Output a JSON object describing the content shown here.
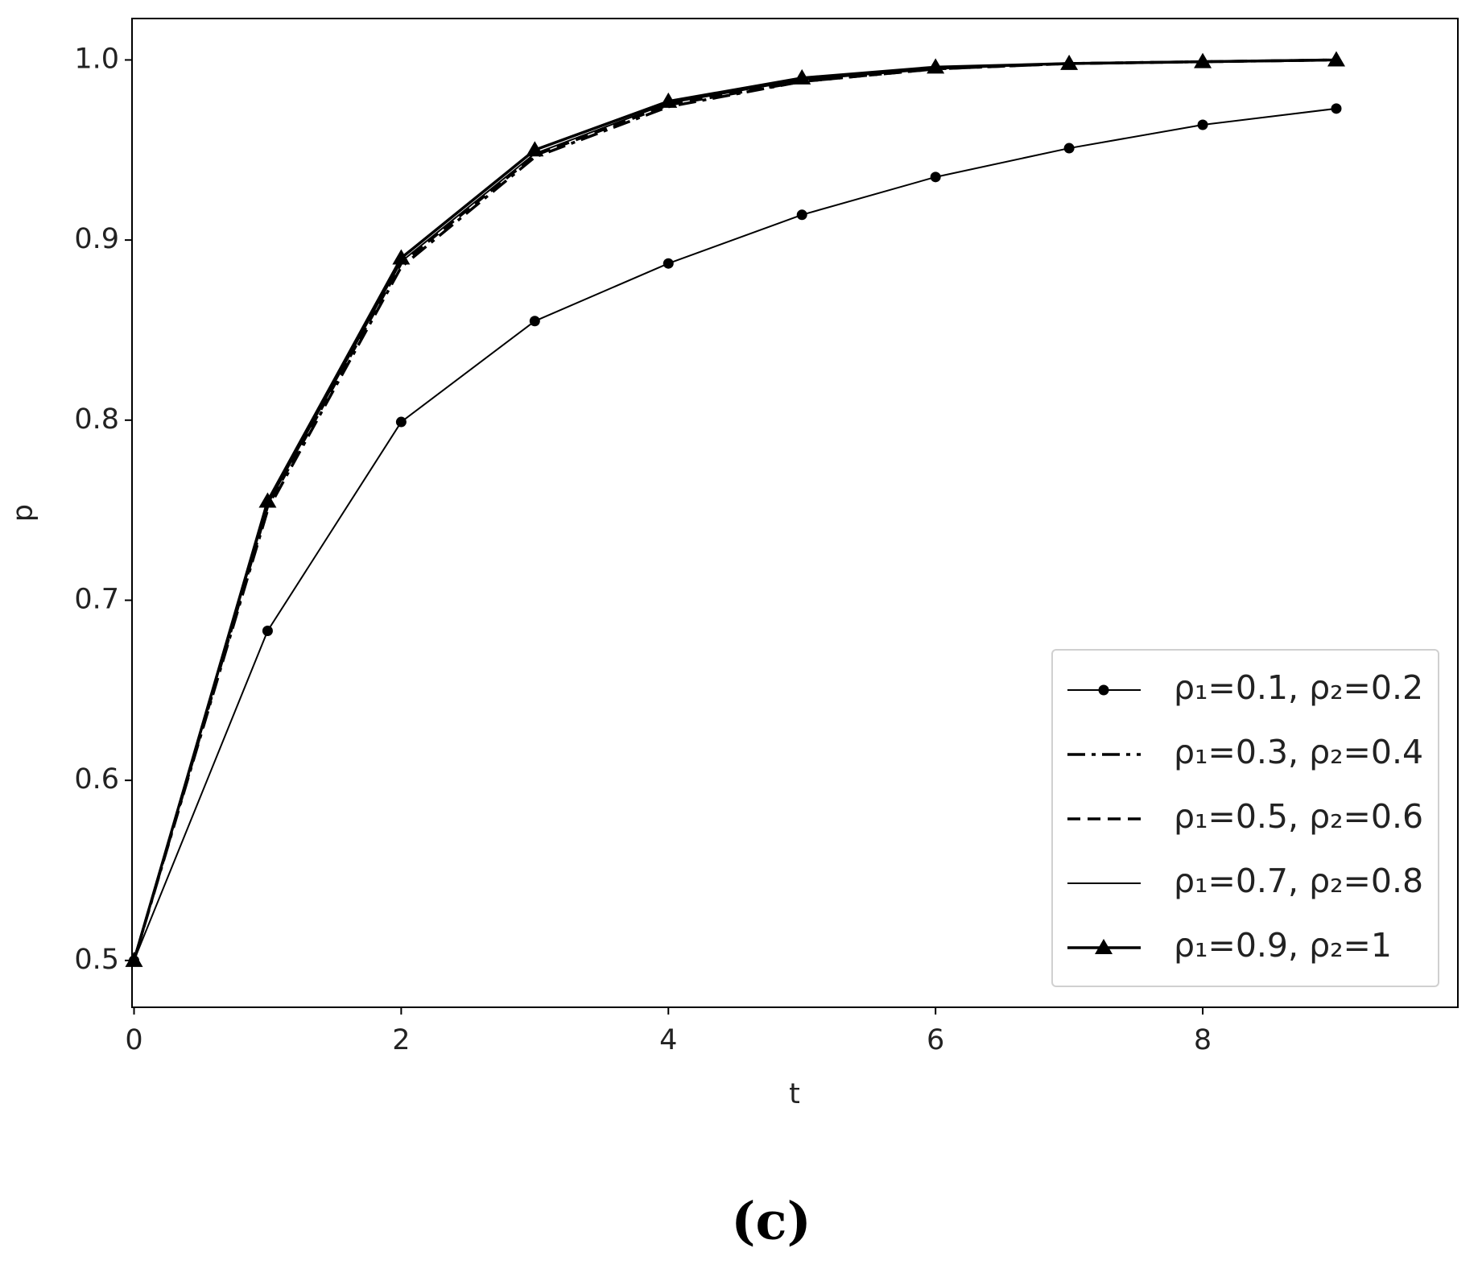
{
  "chart_data": {
    "type": "line",
    "x_label": "t",
    "y_label": "p",
    "caption": "(c)",
    "x": [
      0,
      1,
      2,
      3,
      4,
      5,
      6,
      7,
      8,
      9
    ],
    "series": [
      {
        "name": "ρ₁=0.1, ρ₂=0.2",
        "color": "#000000",
        "linestyle": "solid",
        "marker": "circle",
        "linewidth": 2,
        "values": [
          0.5,
          0.683,
          0.799,
          0.855,
          0.887,
          0.914,
          0.935,
          0.951,
          0.964,
          0.973
        ]
      },
      {
        "name": "ρ₁=0.3, ρ₂=0.4",
        "color": "#000000",
        "linestyle": "dashdot",
        "marker": "none",
        "linewidth": 3.5,
        "values": [
          0.5,
          0.75,
          0.885,
          0.946,
          0.974,
          0.988,
          0.995,
          0.998,
          0.999,
          1.0
        ]
      },
      {
        "name": "ρ₁=0.5, ρ₂=0.6",
        "color": "#000000",
        "linestyle": "dashed",
        "marker": "none",
        "linewidth": 3.5,
        "values": [
          0.5,
          0.752,
          0.887,
          0.947,
          0.975,
          0.988,
          0.995,
          0.998,
          0.999,
          1.0
        ]
      },
      {
        "name": "ρ₁=0.7, ρ₂=0.8",
        "color": "#000000",
        "linestyle": "solid",
        "marker": "none",
        "linewidth": 2,
        "values": [
          0.5,
          0.753,
          0.888,
          0.948,
          0.976,
          0.989,
          0.995,
          0.998,
          0.999,
          1.0
        ]
      },
      {
        "name": "ρ₁=0.9, ρ₂=1",
        "color": "#000000",
        "linestyle": "solid",
        "marker": "triangle",
        "linewidth": 3.5,
        "values": [
          0.5,
          0.755,
          0.89,
          0.95,
          0.977,
          0.99,
          0.996,
          0.998,
          0.999,
          1.0
        ]
      }
    ],
    "xlim": [
      -0.015,
      9.91
    ],
    "ylim": [
      0.474,
      1.023
    ],
    "xticks": [
      0,
      2,
      4,
      6,
      8
    ],
    "yticks": [
      0.5,
      0.6,
      0.7,
      0.8,
      0.9,
      {
        "value": 1,
        "label": "1.0"
      }
    ],
    "grid": false,
    "legend": "lower right"
  }
}
